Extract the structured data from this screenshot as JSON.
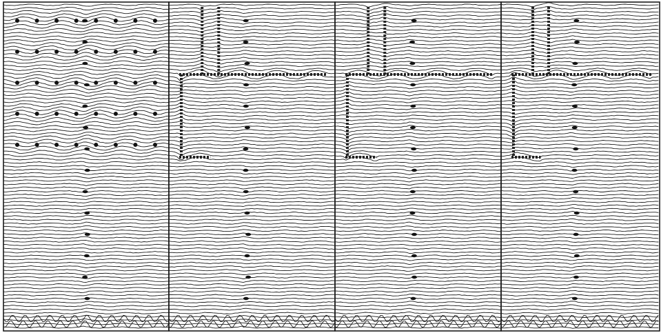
{
  "image": {
    "kind": "contour-line rendering",
    "panels": [
      {
        "id": "panel-1",
        "pattern": "grid-of-dots"
      },
      {
        "id": "panel-2",
        "pattern": "bracket-structure"
      },
      {
        "id": "panel-3",
        "pattern": "bracket-structure"
      },
      {
        "id": "panel-4",
        "pattern": "bracket-structure"
      }
    ],
    "colors": {
      "ink": "#1b1b1b",
      "paper": "#ffffff",
      "blob": "#111111"
    }
  }
}
